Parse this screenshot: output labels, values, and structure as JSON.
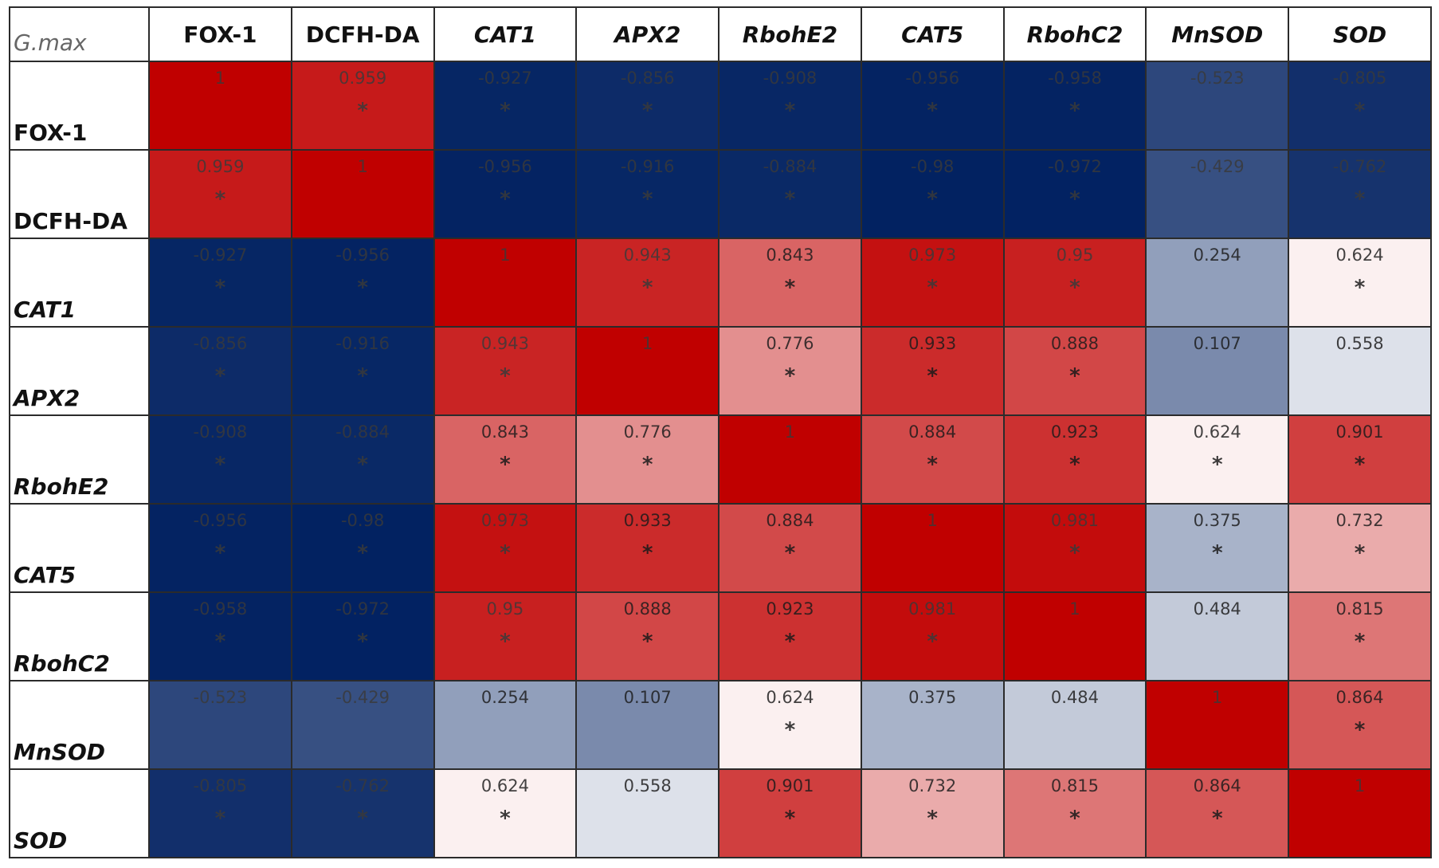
{
  "chart_data": {
    "type": "heatmap",
    "title": "G.max",
    "variables": [
      "FOX-1",
      "DCFH-DA",
      "CAT1",
      "APX2",
      "RbohE2",
      "CAT5",
      "RbohC2",
      "MnSOD",
      "SOD"
    ],
    "italic": [
      false,
      false,
      true,
      true,
      true,
      true,
      true,
      true,
      true
    ],
    "display": [
      [
        "1",
        "0.959",
        "-0.927",
        "-0.856",
        "-0.908",
        "-0.956",
        "-0.958",
        "-0.523",
        "-0.805"
      ],
      [
        "0.959",
        "1",
        "-0.956",
        "-0.916",
        "-0.884",
        "-0.98",
        "-0.972",
        "-0.429",
        "-0.762"
      ],
      [
        "-0.927",
        "-0.956",
        "1",
        "0.943",
        "0.843",
        "0.973",
        "0.95",
        "0.254",
        "0.624"
      ],
      [
        "-0.856",
        "-0.916",
        "0.943",
        "1",
        "0.776",
        "0.933",
        "0.888",
        "0.107",
        "0.558"
      ],
      [
        "-0.908",
        "-0.884",
        "0.843",
        "0.776",
        "1",
        "0.884",
        "0.923",
        "0.624",
        "0.901"
      ],
      [
        "-0.956",
        "-0.98",
        "0.973",
        "0.933",
        "0.884",
        "1",
        "0.981",
        "0.375",
        "0.732"
      ],
      [
        "-0.958",
        "-0.972",
        "0.95",
        "0.888",
        "0.923",
        "0.981",
        "1",
        "0.484",
        "0.815"
      ],
      [
        "-0.523",
        "-0.429",
        "0.254",
        "0.107",
        "0.624",
        "0.375",
        "0.484",
        "1",
        "0.864"
      ],
      [
        "-0.805",
        "-0.762",
        "0.624",
        "0.558",
        "0.901",
        "0.732",
        "0.815",
        "0.864",
        "1"
      ]
    ],
    "significant": [
      [
        false,
        true,
        true,
        true,
        true,
        true,
        true,
        false,
        true
      ],
      [
        true,
        false,
        true,
        true,
        true,
        true,
        true,
        false,
        true
      ],
      [
        true,
        true,
        false,
        true,
        true,
        true,
        true,
        false,
        true
      ],
      [
        true,
        true,
        true,
        false,
        true,
        true,
        true,
        false,
        false
      ],
      [
        true,
        true,
        true,
        true,
        false,
        true,
        true,
        true,
        true
      ],
      [
        true,
        true,
        true,
        true,
        true,
        false,
        true,
        true,
        true
      ],
      [
        true,
        true,
        true,
        true,
        true,
        true,
        false,
        false,
        true
      ],
      [
        false,
        false,
        false,
        false,
        true,
        false,
        false,
        false,
        true
      ],
      [
        true,
        true,
        true,
        false,
        true,
        true,
        true,
        true,
        false
      ]
    ],
    "significance_marker": "*",
    "color_scale": {
      "negative": "#002060",
      "midpoint": "#ffffff",
      "positive": "#c00000",
      "mid_value": 0.6,
      "min_value": -1,
      "max_value": 1
    }
  }
}
